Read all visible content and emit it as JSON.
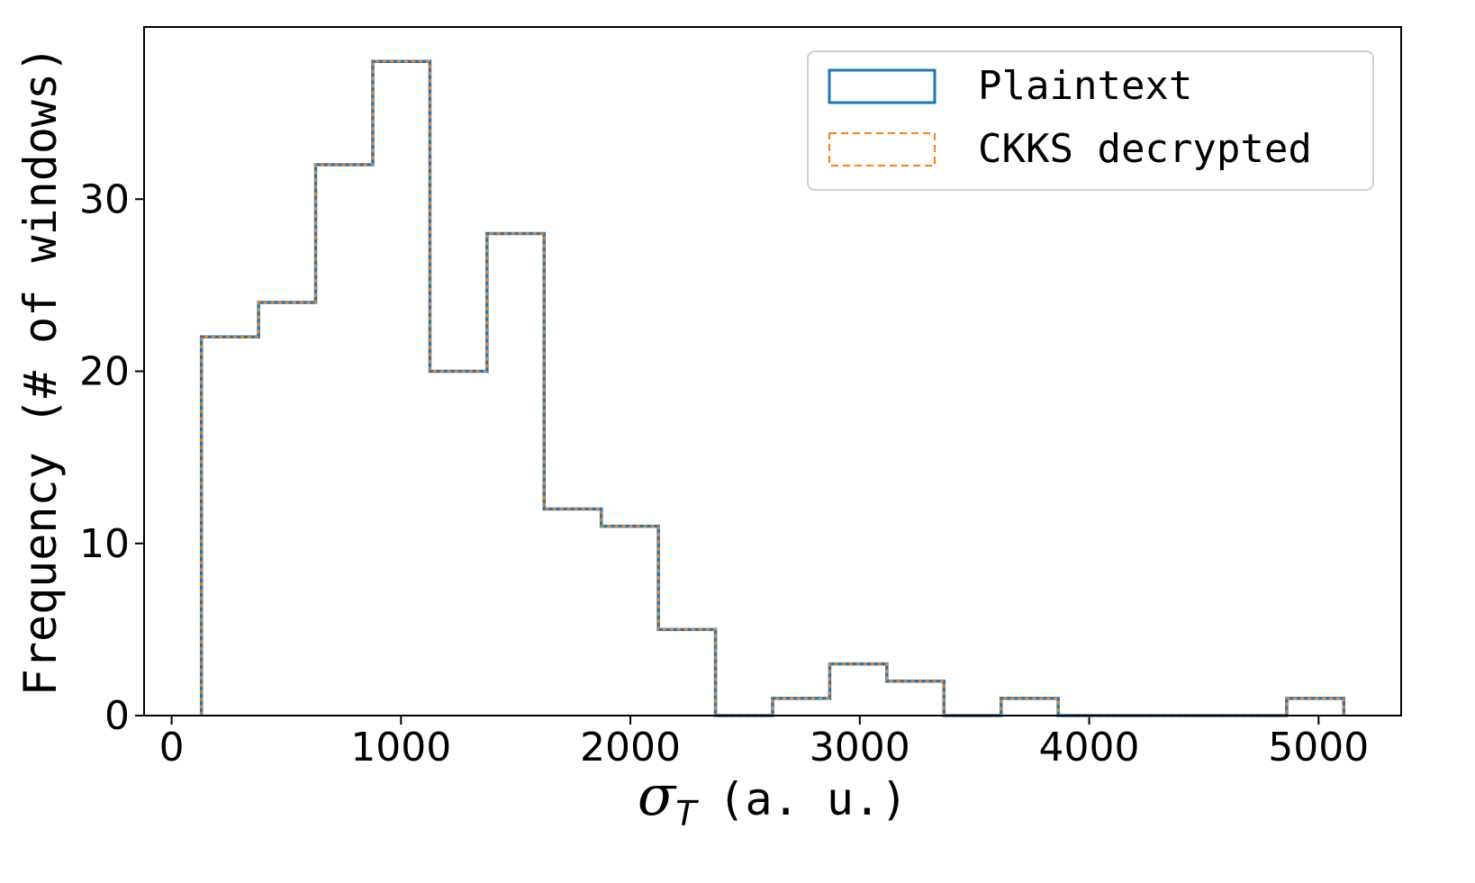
{
  "chart_data": {
    "type": "histogram",
    "bin_edges": [
      130,
      379,
      628,
      877,
      1126,
      1375,
      1624,
      1873,
      2122,
      2371,
      2620,
      2869,
      3118,
      3367,
      3616,
      3865,
      4114,
      4363,
      4612,
      4861,
      5110
    ],
    "series": [
      {
        "name": "Plaintext",
        "style": "solid",
        "color": "#1f77b4",
        "counts": [
          22,
          24,
          32,
          38,
          20,
          28,
          12,
          11,
          5,
          0,
          1,
          3,
          2,
          0,
          1,
          0,
          0,
          0,
          0,
          1
        ]
      },
      {
        "name": "CKKS decrypted",
        "style": "dashed",
        "color": "#ff7f0e",
        "counts": [
          22,
          24,
          32,
          38,
          20,
          28,
          12,
          11,
          5,
          0,
          1,
          3,
          2,
          0,
          1,
          0,
          0,
          0,
          0,
          1
        ]
      }
    ],
    "x_ticks": [
      0,
      1000,
      2000,
      3000,
      4000,
      5000
    ],
    "y_ticks": [
      0,
      10,
      20,
      30
    ],
    "xlim": [
      -120,
      5360
    ],
    "ylim": [
      0,
      40
    ],
    "xlabel_symbol": "σ",
    "xlabel_subscript": "T",
    "xlabel_units": "(a. u.)",
    "ylabel": "Frequency (# of windows)",
    "legend_position": "top-right",
    "grid": false
  }
}
